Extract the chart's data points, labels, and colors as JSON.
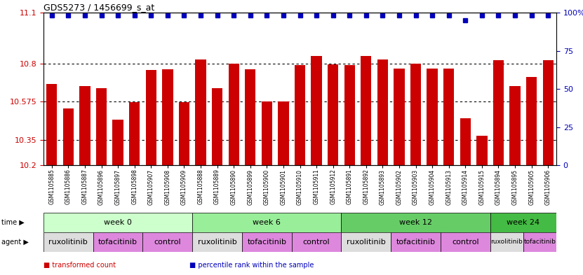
{
  "title": "GDS5273 / 1456699_s_at",
  "samples": [
    "GSM1105885",
    "GSM1105886",
    "GSM1105887",
    "GSM1105896",
    "GSM1105897",
    "GSM1105898",
    "GSM1105907",
    "GSM1105908",
    "GSM1105909",
    "GSM1105888",
    "GSM1105889",
    "GSM1105890",
    "GSM1105899",
    "GSM1105900",
    "GSM1105901",
    "GSM1105910",
    "GSM1105911",
    "GSM1105912",
    "GSM1105891",
    "GSM1105892",
    "GSM1105893",
    "GSM1105902",
    "GSM1105903",
    "GSM1105904",
    "GSM1105913",
    "GSM1105914",
    "GSM1105915",
    "GSM1105894",
    "GSM1105895",
    "GSM1105905",
    "GSM1105906"
  ],
  "bar_values": [
    10.68,
    10.535,
    10.665,
    10.655,
    10.47,
    10.57,
    10.76,
    10.765,
    10.57,
    10.825,
    10.655,
    10.8,
    10.765,
    10.575,
    10.575,
    10.79,
    10.845,
    10.795,
    10.79,
    10.845,
    10.825,
    10.77,
    10.8,
    10.77,
    10.77,
    10.475,
    10.375,
    10.82,
    10.665,
    10.72,
    10.82
  ],
  "percentile_values": [
    98,
    98,
    98,
    98,
    98,
    98,
    98,
    98,
    98,
    98,
    98,
    98,
    98,
    98,
    98,
    98,
    98,
    98,
    98,
    98,
    98,
    98,
    98,
    98,
    98,
    95,
    98,
    98,
    98,
    98,
    98
  ],
  "y_min": 10.2,
  "y_max": 11.1,
  "y_ticks": [
    10.2,
    10.35,
    10.575,
    10.8,
    11.1
  ],
  "y_tick_labels": [
    "10.2",
    "10.35",
    "10.575",
    "10.8",
    "11.1"
  ],
  "right_y_ticks": [
    0,
    25,
    50,
    75,
    100
  ],
  "right_y_labels": [
    "0",
    "25",
    "50",
    "75",
    "100%"
  ],
  "bar_color": "#CC0000",
  "dot_color": "#0000BB",
  "gridline_color": "black",
  "gridline_values": [
    10.35,
    10.575,
    10.8
  ],
  "time_groups": [
    {
      "label": "week 0",
      "start": 0,
      "end": 9,
      "color": "#ccffcc"
    },
    {
      "label": "week 6",
      "start": 9,
      "end": 18,
      "color": "#99ee99"
    },
    {
      "label": "week 12",
      "start": 18,
      "end": 27,
      "color": "#66cc66"
    },
    {
      "label": "week 24",
      "start": 27,
      "end": 31,
      "color": "#44bb44"
    }
  ],
  "agent_groups": [
    {
      "label": "ruxolitinib",
      "start": 0,
      "end": 3,
      "color": "#dddddd"
    },
    {
      "label": "tofacitinib",
      "start": 3,
      "end": 6,
      "color": "#dd88dd"
    },
    {
      "label": "control",
      "start": 6,
      "end": 9,
      "color": "#dd88dd"
    },
    {
      "label": "ruxolitinib",
      "start": 9,
      "end": 12,
      "color": "#dddddd"
    },
    {
      "label": "tofacitinib",
      "start": 12,
      "end": 15,
      "color": "#dd88dd"
    },
    {
      "label": "control",
      "start": 15,
      "end": 18,
      "color": "#dd88dd"
    },
    {
      "label": "ruxolitinib",
      "start": 18,
      "end": 21,
      "color": "#dddddd"
    },
    {
      "label": "tofacitinib",
      "start": 21,
      "end": 24,
      "color": "#dd88dd"
    },
    {
      "label": "control",
      "start": 24,
      "end": 27,
      "color": "#dd88dd"
    },
    {
      "label": "ruxolitinib",
      "start": 27,
      "end": 29,
      "color": "#dddddd"
    },
    {
      "label": "tofacitinib",
      "start": 29,
      "end": 31,
      "color": "#dd88dd"
    }
  ],
  "legend_items": [
    {
      "label": "transformed count",
      "color": "#CC0000"
    },
    {
      "label": "percentile rank within the sample",
      "color": "#0000BB"
    }
  ],
  "fig_width": 8.31,
  "fig_height": 3.93,
  "dpi": 100
}
